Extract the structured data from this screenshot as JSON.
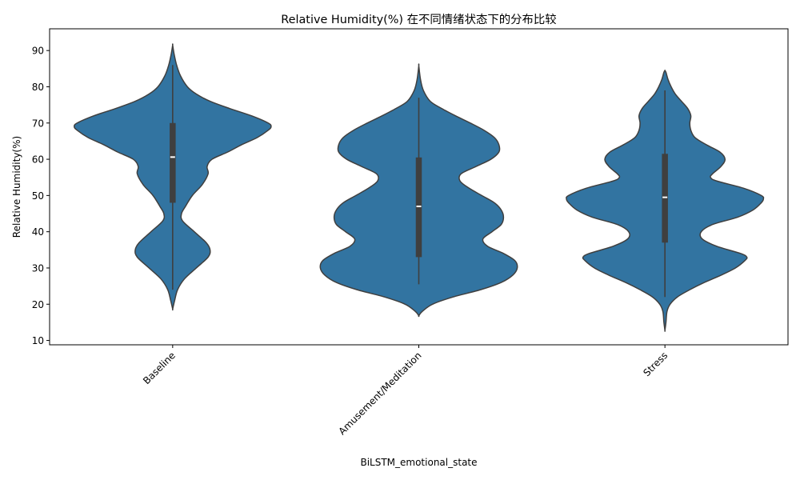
{
  "chart_data": {
    "type": "violin",
    "title": "Relative Humidity(%) 在不同情绪状态下的分布比较",
    "xlabel": "BiLSTM_emotional_state",
    "ylabel": "Relative Humidity(%)",
    "categories": [
      "Baseline",
      "Amusement/Meditation",
      "Stress"
    ],
    "ylim": [
      8.8,
      96
    ],
    "yticks": [
      10,
      20,
      30,
      40,
      50,
      60,
      70,
      80,
      90
    ],
    "grid": false,
    "colors": {
      "violin_fill": "#3274a1",
      "outline": "#3f3f3f",
      "box": "#3f3f3f",
      "median": "#ffffff"
    },
    "violins": [
      {
        "name": "Baseline",
        "box": {
          "min": 24,
          "q1": 48,
          "median": 60.6,
          "q3": 70,
          "max": 86
        },
        "density": [
          [
            18.7,
            0
          ],
          [
            21,
            0.02
          ],
          [
            24,
            0.05
          ],
          [
            27,
            0.12
          ],
          [
            30,
            0.24
          ],
          [
            33,
            0.36
          ],
          [
            35,
            0.38
          ],
          [
            37,
            0.34
          ],
          [
            40,
            0.22
          ],
          [
            43,
            0.1
          ],
          [
            45,
            0.09
          ],
          [
            47,
            0.13
          ],
          [
            50,
            0.2
          ],
          [
            53,
            0.3
          ],
          [
            56,
            0.36
          ],
          [
            58,
            0.35
          ],
          [
            60,
            0.4
          ],
          [
            62,
            0.56
          ],
          [
            64,
            0.7
          ],
          [
            66,
            0.86
          ],
          [
            68,
            0.97
          ],
          [
            69,
            1.0
          ],
          [
            70,
            0.97
          ],
          [
            72,
            0.8
          ],
          [
            74,
            0.58
          ],
          [
            76,
            0.38
          ],
          [
            78,
            0.24
          ],
          [
            80,
            0.15
          ],
          [
            83,
            0.08
          ],
          [
            86,
            0.04
          ],
          [
            89,
            0.015
          ],
          [
            91.5,
            0
          ]
        ]
      },
      {
        "name": "Amusement/Meditation",
        "box": {
          "min": 25.5,
          "q1": 33,
          "median": 47,
          "q3": 60.5,
          "max": 77
        },
        "density": [
          [
            16.8,
            0
          ],
          [
            18,
            0.03
          ],
          [
            20,
            0.12
          ],
          [
            22,
            0.3
          ],
          [
            24,
            0.54
          ],
          [
            26,
            0.72
          ],
          [
            28,
            0.82
          ],
          [
            30,
            0.86
          ],
          [
            32,
            0.84
          ],
          [
            34,
            0.74
          ],
          [
            36,
            0.6
          ],
          [
            38,
            0.56
          ],
          [
            40,
            0.64
          ],
          [
            42,
            0.72
          ],
          [
            44,
            0.74
          ],
          [
            46,
            0.72
          ],
          [
            48,
            0.66
          ],
          [
            50,
            0.55
          ],
          [
            52,
            0.44
          ],
          [
            54,
            0.36
          ],
          [
            56,
            0.37
          ],
          [
            58,
            0.5
          ],
          [
            60,
            0.63
          ],
          [
            62,
            0.7
          ],
          [
            64,
            0.7
          ],
          [
            66,
            0.66
          ],
          [
            68,
            0.57
          ],
          [
            70,
            0.45
          ],
          [
            72,
            0.32
          ],
          [
            74,
            0.2
          ],
          [
            76,
            0.1
          ],
          [
            79,
            0.04
          ],
          [
            82,
            0.015
          ],
          [
            85.8,
            0
          ]
        ]
      },
      {
        "name": "Stress",
        "box": {
          "min": 22,
          "q1": 37,
          "median": 49.5,
          "q3": 61.5,
          "max": 79
        },
        "density": [
          [
            12.8,
            0
          ],
          [
            15,
            0.01
          ],
          [
            18,
            0.02
          ],
          [
            20,
            0.05
          ],
          [
            22,
            0.12
          ],
          [
            24,
            0.24
          ],
          [
            26,
            0.38
          ],
          [
            28,
            0.54
          ],
          [
            30,
            0.68
          ],
          [
            32,
            0.77
          ],
          [
            33,
            0.79
          ],
          [
            34,
            0.73
          ],
          [
            36,
            0.5
          ],
          [
            38,
            0.36
          ],
          [
            40,
            0.35
          ],
          [
            42,
            0.46
          ],
          [
            44,
            0.7
          ],
          [
            46,
            0.85
          ],
          [
            48,
            0.93
          ],
          [
            49,
            0.95
          ],
          [
            50,
            0.93
          ],
          [
            52,
            0.76
          ],
          [
            54,
            0.5
          ],
          [
            55,
            0.44
          ],
          [
            56,
            0.46
          ],
          [
            58,
            0.54
          ],
          [
            60,
            0.58
          ],
          [
            62,
            0.53
          ],
          [
            64,
            0.4
          ],
          [
            66,
            0.29
          ],
          [
            68,
            0.25
          ],
          [
            70,
            0.24
          ],
          [
            72,
            0.25
          ],
          [
            74,
            0.22
          ],
          [
            76,
            0.16
          ],
          [
            78,
            0.1
          ],
          [
            80,
            0.06
          ],
          [
            82,
            0.03
          ],
          [
            84,
            0.01
          ],
          [
            84.5,
            0
          ]
        ]
      }
    ]
  }
}
